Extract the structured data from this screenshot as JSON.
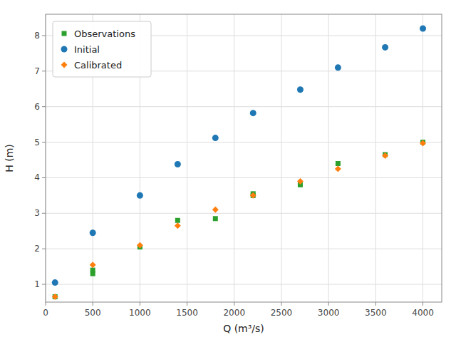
{
  "chart_data": {
    "type": "scatter",
    "xlabel": "Q (m³/s)",
    "ylabel": "H (m)",
    "series": [
      {
        "name": "Observations",
        "color": "#2ca02c",
        "marker": "square",
        "x": [
          100,
          500,
          500,
          1000,
          1400,
          1800,
          2200,
          2200,
          2700,
          3100,
          3600,
          4000
        ],
        "values": [
          0.65,
          1.3,
          1.4,
          2.05,
          2.8,
          2.85,
          3.5,
          3.55,
          3.8,
          4.4,
          4.65,
          5.0
        ]
      },
      {
        "name": "Initial",
        "color": "#1f77b4",
        "marker": "circle",
        "x": [
          100,
          500,
          1000,
          1400,
          1800,
          2200,
          2700,
          3100,
          3600,
          4000
        ],
        "values": [
          1.05,
          2.45,
          3.5,
          4.38,
          5.12,
          5.82,
          6.48,
          7.1,
          7.67,
          8.2
        ]
      },
      {
        "name": "Calibrated",
        "color": "#ff7f0e",
        "marker": "diamond",
        "x": [
          100,
          500,
          1000,
          1400,
          1800,
          2200,
          2700,
          3100,
          3600,
          4000
        ],
        "values": [
          0.65,
          1.55,
          2.1,
          2.65,
          3.1,
          3.5,
          3.9,
          4.25,
          4.62,
          4.97
        ]
      }
    ],
    "xlim": [
      0,
      4200
    ],
    "ylim": [
      0.5,
      8.6
    ],
    "xticks": [
      0,
      500,
      1000,
      1500,
      2000,
      2500,
      3000,
      3500,
      4000
    ],
    "yticks": [
      1,
      2,
      3,
      4,
      5,
      6,
      7,
      8
    ],
    "grid": true,
    "legend": "upper left"
  }
}
